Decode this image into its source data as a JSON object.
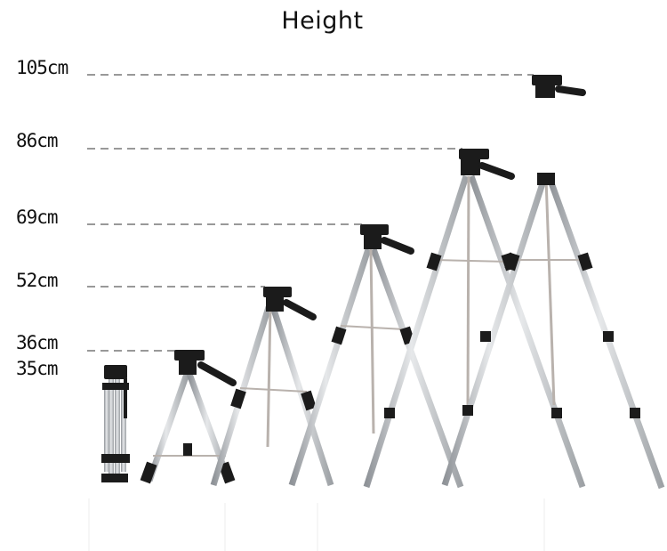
{
  "title": "Height",
  "heights": [
    {
      "label": "105cm"
    },
    {
      "label": "86cm"
    },
    {
      "label": "69cm"
    },
    {
      "label": "52cm"
    },
    {
      "label": "36cm"
    },
    {
      "label": "35cm"
    }
  ],
  "colors": {
    "leg": "#c9ccd0",
    "leg_shadow": "#8f9398",
    "joint": "#1a1a1a",
    "column": "#b9b2ad",
    "dash": "#999999",
    "text": "#111111"
  },
  "icons": [
    "tripod-folded",
    "tripod-36cm",
    "tripod-52cm",
    "tripod-69cm",
    "tripod-86cm",
    "tripod-105cm"
  ]
}
